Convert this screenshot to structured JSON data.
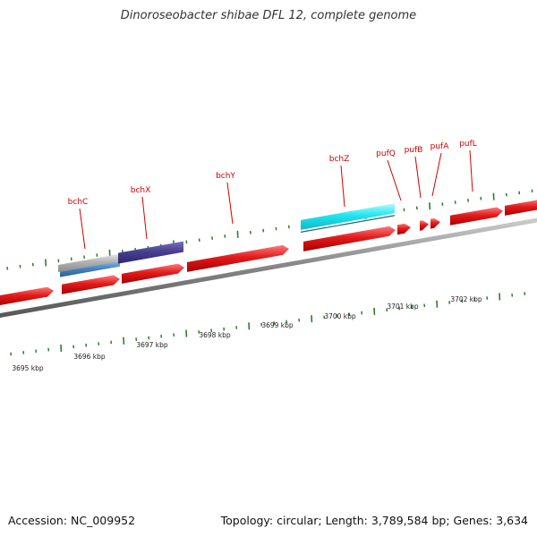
{
  "title": "Dinoroseobacter shibae DFL 12, complete genome",
  "footer": {
    "accession": "Accession: NC_009952",
    "topology": "Topology: circular; Length: 3,789,584 bp; Genes: 3,634"
  },
  "colors": {
    "backbone": "#8a8a8a",
    "gene_forward": "#e21b1b",
    "tick_green": "#2e7d32",
    "feature_cyan": "#1fe6f0",
    "feature_navy": "#4a3f90",
    "feature_blue": "#4a86c0",
    "feature_gray": "#b0b0b0",
    "label_red": "#d40000"
  },
  "gene_labels": [
    "bchC",
    "bchX",
    "bchY",
    "bchZ",
    "pufQ",
    "pufB",
    "pufA",
    "pufL"
  ],
  "kbp_labels": [
    "3695 kbp",
    "3696 kbp",
    "3697 kbp",
    "3698 kbp",
    "3699 kbp",
    "3700 kbp",
    "3701 kbp",
    "3702 kbp"
  ]
}
